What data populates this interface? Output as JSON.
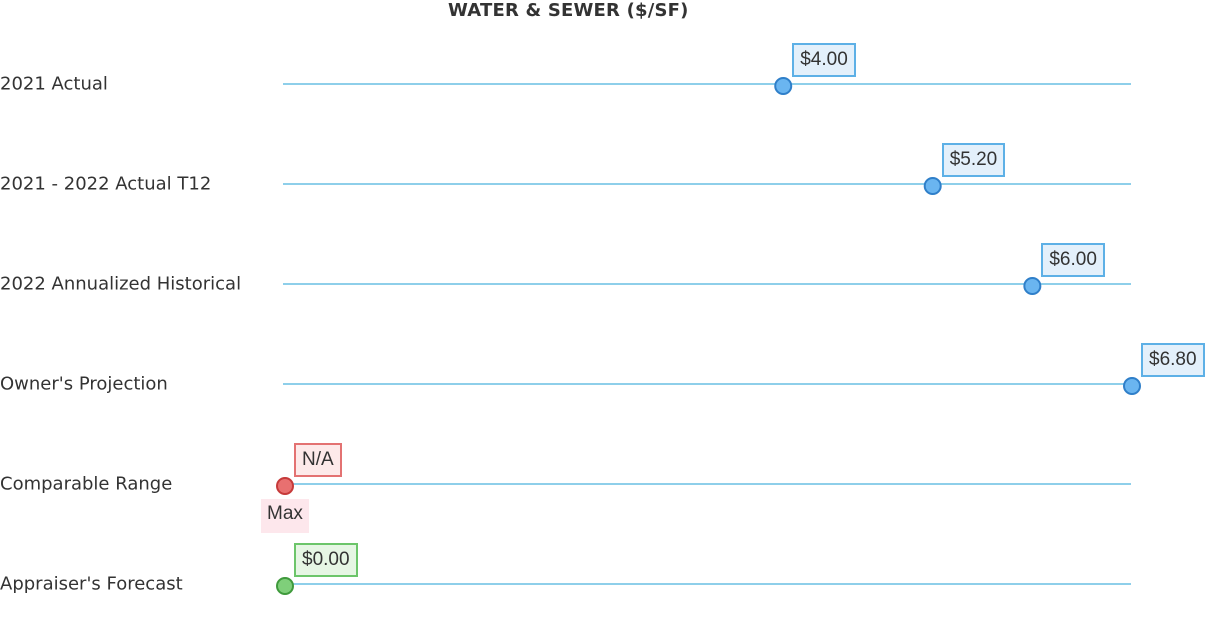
{
  "chart_data": {
    "type": "scatter",
    "title": "WATER & SEWER ($/SF)",
    "xlim": [
      0,
      6.8
    ],
    "rows": [
      {
        "label": "2021 Actual",
        "value": 4.0,
        "value_label": "$4.00",
        "style": "blue"
      },
      {
        "label": "2021 - 2022 Actual T12",
        "value": 5.2,
        "value_label": "$5.20",
        "style": "blue"
      },
      {
        "label": "2022 Annualized Historical",
        "value": 6.0,
        "value_label": "$6.00",
        "style": "blue"
      },
      {
        "label": "Owner's Projection",
        "value": 6.8,
        "value_label": "$6.80",
        "style": "blue"
      },
      {
        "label": "Comparable Range",
        "value": 0,
        "value_label": "N/A",
        "extra_label": "Max",
        "style": "red"
      },
      {
        "label": "Appraiser's Forecast",
        "value": 0.0,
        "value_label": "$0.00",
        "style": "green"
      }
    ]
  },
  "colors": {
    "track": "#8ecfea",
    "blue_fill": "#6ab5f0",
    "blue_stroke": "#2f7fc9",
    "red_fill": "#e87070",
    "red_stroke": "#c63a3a",
    "green_fill": "#7fcf7a",
    "green_stroke": "#3f9a3c"
  }
}
